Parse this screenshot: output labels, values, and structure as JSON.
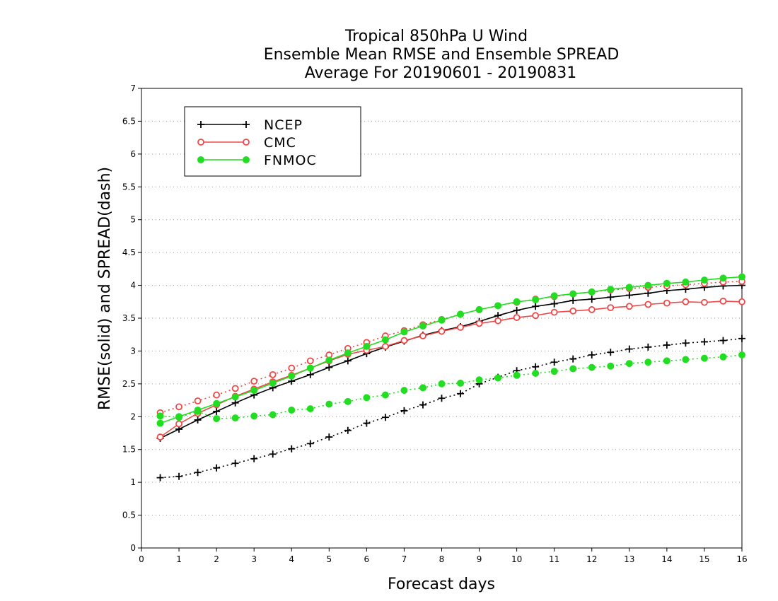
{
  "chart_data": {
    "type": "line",
    "title": [
      "Tropical 850hPa U Wind",
      "Ensemble Mean RMSE and Ensemble SPREAD",
      "Average For 20190601 - 20190831"
    ],
    "xlabel": "Forecast days",
    "ylabel": "RMSE(solid) and SPREAD(dash)",
    "xlim": [
      0,
      16
    ],
    "ylim": [
      0,
      7
    ],
    "xticks": [
      "0",
      "1",
      "2",
      "3",
      "4",
      "5",
      "6",
      "7",
      "8",
      "9",
      "10",
      "11",
      "12",
      "13",
      "14",
      "15",
      "16"
    ],
    "yticks": [
      "0",
      "0.5",
      "1",
      "1.5",
      "2",
      "2.5",
      "3",
      "3.5",
      "4",
      "4.5",
      "5",
      "5.5",
      "6",
      "6.5",
      "7"
    ],
    "grid": "horizontal dotted",
    "legend_position": "top-left",
    "x": [
      0.5,
      1,
      1.5,
      2,
      2.5,
      3,
      3.5,
      4,
      4.5,
      5,
      5.5,
      6,
      6.5,
      7,
      7.5,
      8,
      8.5,
      9,
      9.5,
      10,
      10.5,
      11,
      11.5,
      12,
      12.5,
      13,
      13.5,
      14,
      14.5,
      15,
      15.5,
      16
    ],
    "series": [
      {
        "name": "NCEP",
        "color": "#000000",
        "marker": "plus",
        "rmse": [
          1.67,
          1.81,
          1.95,
          2.08,
          2.21,
          2.33,
          2.44,
          2.54,
          2.64,
          2.75,
          2.85,
          2.96,
          3.06,
          3.15,
          3.24,
          3.31,
          3.37,
          3.45,
          3.54,
          3.62,
          3.68,
          3.72,
          3.77,
          3.79,
          3.82,
          3.85,
          3.88,
          3.92,
          3.94,
          3.97,
          3.99,
          4.0
        ],
        "spread": [
          1.07,
          1.09,
          1.15,
          1.22,
          1.29,
          1.36,
          1.43,
          1.51,
          1.59,
          1.69,
          1.79,
          1.9,
          1.99,
          2.09,
          2.18,
          2.28,
          2.35,
          2.5,
          2.6,
          2.7,
          2.76,
          2.83,
          2.88,
          2.94,
          2.98,
          3.03,
          3.06,
          3.09,
          3.12,
          3.14,
          3.16,
          3.19
        ]
      },
      {
        "name": "CMC",
        "color": "#f04848",
        "marker": "open-circle",
        "rmse": [
          1.69,
          1.89,
          2.05,
          2.18,
          2.31,
          2.42,
          2.53,
          2.63,
          2.74,
          2.85,
          2.95,
          3.01,
          3.07,
          3.16,
          3.23,
          3.3,
          3.36,
          3.42,
          3.46,
          3.51,
          3.54,
          3.59,
          3.61,
          3.63,
          3.66,
          3.68,
          3.71,
          3.73,
          3.75,
          3.74,
          3.76,
          3.75
        ],
        "spread": [
          2.06,
          2.15,
          2.24,
          2.33,
          2.43,
          2.54,
          2.64,
          2.74,
          2.85,
          2.94,
          3.04,
          3.13,
          3.23,
          3.31,
          3.4,
          3.48,
          3.56,
          3.63,
          3.69,
          3.74,
          3.79,
          3.83,
          3.87,
          3.9,
          3.93,
          3.95,
          3.97,
          3.99,
          4.01,
          4.03,
          4.05,
          4.06
        ]
      },
      {
        "name": "FNMOC",
        "color": "#22dd22",
        "marker": "filled-circle",
        "rmse": [
          1.9,
          2.0,
          2.1,
          2.2,
          2.3,
          2.4,
          2.51,
          2.62,
          2.74,
          2.86,
          2.97,
          3.07,
          3.17,
          3.29,
          3.38,
          3.47,
          3.56,
          3.63,
          3.69,
          3.75,
          3.78,
          3.84,
          3.87,
          3.9,
          3.94,
          3.97,
          4.0,
          4.03,
          4.05,
          4.08,
          4.11,
          4.13
        ],
        "spread": [
          2.01,
          1.99,
          2.08,
          1.97,
          1.98,
          2.01,
          2.03,
          2.1,
          2.12,
          2.19,
          2.23,
          2.29,
          2.33,
          2.4,
          2.44,
          2.5,
          2.51,
          2.56,
          2.59,
          2.63,
          2.66,
          2.69,
          2.73,
          2.75,
          2.77,
          2.81,
          2.83,
          2.85,
          2.87,
          2.89,
          2.91,
          2.94
        ]
      }
    ]
  }
}
